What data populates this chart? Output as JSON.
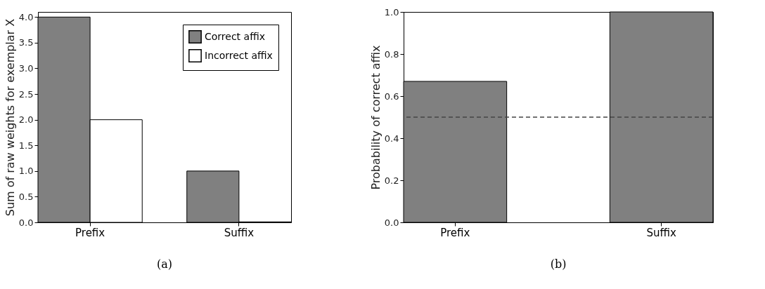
{
  "chart_data": [
    {
      "type": "bar",
      "categories": [
        "Prefix",
        "Suffix"
      ],
      "ylabel": "Sum of raw weights for exemplar X",
      "ylim": [
        0,
        4.1
      ],
      "yticks": [
        {
          "value": 0,
          "label": "0.0"
        },
        0.5,
        {
          "value": 1,
          "label": "1.0"
        },
        1.5,
        {
          "value": 2,
          "label": "2.0"
        },
        2.5,
        {
          "value": 3,
          "label": "3.0"
        },
        3.5,
        {
          "value": 4,
          "label": "4.0"
        }
      ],
      "grid": false,
      "legend": "top right",
      "annotations": [
        "(a)"
      ],
      "series": [
        {
          "name": "Correct affix",
          "color": "#808080",
          "values": [
            4.0,
            1.0
          ]
        },
        {
          "name": "Incorrect affix",
          "color": "#ffffff",
          "values": [
            2.0,
            0.01
          ]
        }
      ]
    },
    {
      "type": "bar",
      "categories": [
        "Prefix",
        "Suffix"
      ],
      "ylabel": "Probability of correct affix",
      "ylim": [
        0,
        1
      ],
      "yticks": [
        {
          "value": 0,
          "label": "0.0"
        },
        0.2,
        0.4,
        0.6,
        0.8,
        {
          "value": 1,
          "label": "1.0"
        }
      ],
      "grid": false,
      "annotations": [
        "(b)"
      ],
      "series": [
        {
          "color": "#808080",
          "values": [
            0.67,
            1.0
          ]
        }
      ],
      "ref_lines": [
        {
          "axis": "y",
          "value": 0.5,
          "color": "#444444",
          "line_style": "dashed"
        }
      ]
    }
  ]
}
